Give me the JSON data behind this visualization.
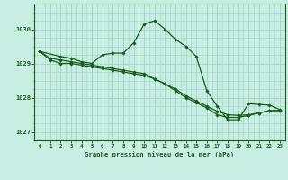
{
  "title": "Graphe pression niveau de la mer (hPa)",
  "bg_color": "#c8eee4",
  "grid_color": "#a8d8cc",
  "line_color": "#1a5c1a",
  "xlim": [
    -0.5,
    23.5
  ],
  "ylim": [
    1026.75,
    1030.75
  ],
  "xticks": [
    0,
    1,
    2,
    3,
    4,
    5,
    6,
    7,
    8,
    9,
    10,
    11,
    12,
    13,
    14,
    15,
    16,
    17,
    18,
    19,
    20,
    21,
    22,
    23
  ],
  "yticks": [
    1027,
    1028,
    1029,
    1030
  ],
  "series": [
    {
      "x": [
        0,
        1,
        2,
        3,
        4,
        5,
        6,
        7,
        8,
        9,
        10,
        11,
        12,
        13,
        14,
        15,
        16,
        17,
        18,
        19,
        20,
        21,
        22,
        23
      ],
      "y": [
        1029.35,
        1029.1,
        1029.0,
        1029.0,
        1028.95,
        1028.9,
        1028.85,
        1028.8,
        1028.75,
        1028.7,
        1028.65,
        1028.55,
        1028.4,
        1028.25,
        1028.05,
        1027.9,
        1027.75,
        1027.6,
        1027.5,
        1027.48,
        1027.5,
        1027.55,
        1027.62,
        1027.62
      ]
    },
    {
      "x": [
        0,
        1,
        2,
        3,
        4,
        5,
        6,
        7,
        8,
        9,
        10,
        11,
        12,
        13,
        14,
        15,
        16,
        17,
        18,
        19,
        20,
        21,
        22,
        23
      ],
      "y": [
        1029.35,
        1029.15,
        1029.1,
        1029.05,
        1029.0,
        1028.95,
        1028.9,
        1028.85,
        1028.8,
        1028.75,
        1028.7,
        1028.55,
        1028.4,
        1028.2,
        1028.0,
        1027.85,
        1027.7,
        1027.5,
        1027.42,
        1027.42,
        1027.48,
        1027.55,
        1027.62,
        1027.62
      ]
    },
    {
      "x": [
        0,
        2,
        3,
        4,
        5,
        6,
        7,
        8,
        9,
        10,
        11,
        12,
        13,
        14,
        15,
        16,
        17,
        18,
        19,
        20,
        21,
        22,
        23
      ],
      "y": [
        1029.35,
        1029.2,
        1029.15,
        1029.05,
        1029.0,
        1029.25,
        1029.3,
        1029.3,
        1029.6,
        1030.15,
        1030.25,
        1030.0,
        1029.7,
        1029.5,
        1029.2,
        1028.2,
        1027.75,
        1027.35,
        1027.35,
        1027.82,
        1027.8,
        1027.78,
        1027.65
      ]
    }
  ]
}
